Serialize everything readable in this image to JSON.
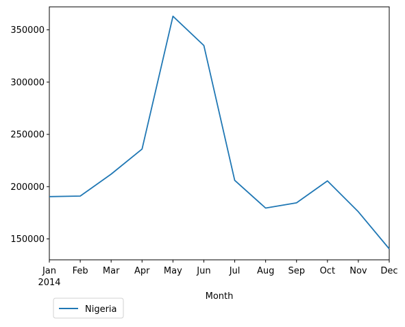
{
  "chart_data": {
    "type": "line",
    "title": "",
    "xlabel": "Month",
    "ylabel": "",
    "categories": [
      "Jan",
      "Feb",
      "Mar",
      "Apr",
      "May",
      "Jun",
      "Jul",
      "Aug",
      "Sep",
      "Oct",
      "Nov",
      "Dec"
    ],
    "year_label": "2014",
    "series": [
      {
        "name": "Nigeria",
        "color": "#1f77b4",
        "values": [
          190500,
          191000,
          212000,
          236000,
          363000,
          335000,
          206000,
          179500,
          184500,
          205500,
          176000,
          140500
        ]
      }
    ],
    "yticks": [
      150000,
      200000,
      250000,
      300000,
      350000
    ],
    "ytick_labels": [
      "150000",
      "200000",
      "250000",
      "300000",
      "350000"
    ],
    "ylim": [
      130000,
      372000
    ],
    "grid": false,
    "legend": {
      "placement": "bottom-left, below axes",
      "entries": [
        "Nigeria"
      ]
    }
  }
}
